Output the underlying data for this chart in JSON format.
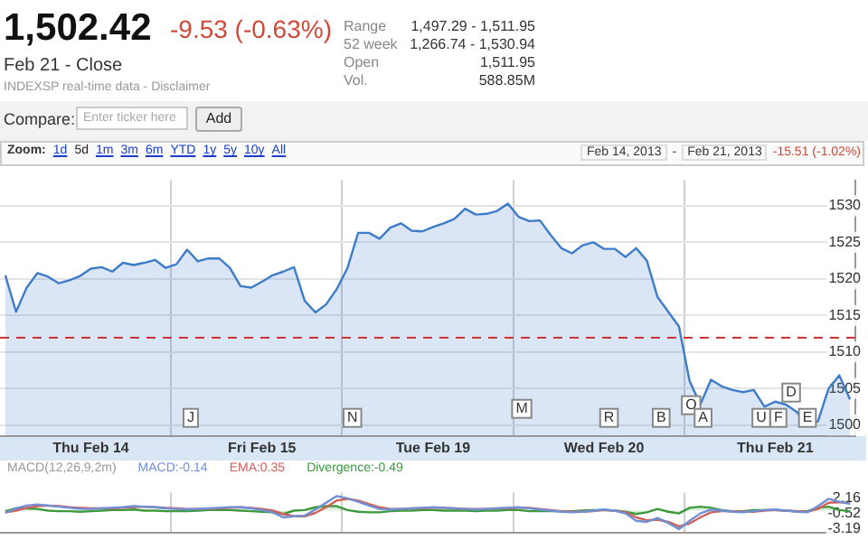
{
  "chart_data": [
    {
      "type": "other",
      "title": "1,502.42",
      "subtitle": "-9.53 (-0.63%)",
      "annotations": [
        "Feb 21 - Close",
        "INDEXSP real-time data - Disclaimer",
        "Range",
        "1,497.29 - 1,511.95",
        "52 week",
        "1,266.74 - 1,530.94",
        "Open",
        "1,511.95",
        "Vol.",
        "588.85M",
        "Compare:",
        "Enter ticker here",
        "Add",
        "Zoom:",
        "1d",
        "5d",
        "1m",
        "3m",
        "6m",
        "YTD",
        "1y",
        "5y",
        "10y",
        "All",
        "Feb 14, 2013",
        "-",
        "Feb 21, 2013",
        "-15.51 (-1.02%)"
      ]
    },
    {
      "type": "line",
      "ylim": [
        1498.5,
        1533.5
      ],
      "categories": [
        null,
        null,
        null,
        null,
        null,
        null,
        null,
        null,
        "Thu Feb 14",
        null,
        null,
        null,
        null,
        null,
        null,
        null,
        null,
        null,
        null,
        null,
        null,
        null,
        null,
        null,
        "Fri Feb 15",
        null,
        null,
        null,
        null,
        null,
        null,
        null,
        null,
        null,
        null,
        null,
        null,
        null,
        null,
        null,
        "Tue Feb 19",
        null,
        null,
        null,
        null,
        null,
        null,
        null,
        null,
        null,
        null,
        null,
        null,
        null,
        null,
        null,
        "Wed Feb 20",
        null,
        null,
        null,
        null,
        null,
        null,
        null,
        null,
        null,
        null,
        null,
        null,
        null,
        null,
        null,
        "Thu Feb 21",
        null,
        null,
        null,
        null,
        null,
        null,
        null
      ],
      "yticks": [
        1500,
        1505,
        1510,
        1515,
        1520,
        1525,
        1530
      ],
      "grid": true,
      "marker": "none",
      "line_style": "solid",
      "series": [
        {
          "type": "area",
          "color": "#3d7cc9",
          "values": [
            1520.5,
            1515.5,
            1518.8,
            1520.8,
            1520.3,
            1519.4,
            1519.8,
            1520.4,
            1521.4,
            1521.6,
            1521.0,
            1522.2,
            1521.9,
            1522.2,
            1522.6,
            1521.5,
            1522.0,
            1524.0,
            1522.4,
            1522.8,
            1522.8,
            1521.5,
            1519.0,
            1518.8,
            1519.6,
            1520.5,
            1521.0,
            1521.6,
            1517.0,
            1515.4,
            1516.5,
            1518.6,
            1521.5,
            1526.3,
            1526.3,
            1525.5,
            1527.0,
            1527.6,
            1526.6,
            1526.5,
            1527.1,
            1527.6,
            1528.2,
            1529.6,
            1528.8,
            1528.9,
            1529.3,
            1530.3,
            1528.5,
            1527.9,
            1528.0,
            1526.0,
            1524.2,
            1523.5,
            1524.6,
            1525.0,
            1524.1,
            1524.1,
            1523.0,
            1524.2,
            1522.5,
            1517.5,
            1515.5,
            1513.5,
            1506.0,
            1502.8,
            1506.2,
            1505.3,
            1504.8,
            1504.5,
            1504.8,
            1502.5,
            1503.2,
            1502.8,
            1501.8,
            1500.0,
            1500.5,
            1505.0,
            1506.8,
            1503.5
          ]
        }
      ],
      "ref_lines": [
        {
          "axis": "y",
          "value": 1511.95,
          "color": "#cc3333",
          "line_style": "dashed"
        }
      ],
      "annotations": [
        "J",
        "N",
        "M",
        "R",
        "B",
        "O",
        "A",
        "U",
        "F",
        "E",
        "D"
      ]
    },
    {
      "type": "line",
      "subtitle": "MACD(12,26,9,2m)",
      "ylim": [
        -4,
        3.2
      ],
      "categories": [
        null,
        null,
        null,
        null,
        null,
        null,
        null,
        null,
        null,
        null,
        null,
        null,
        null,
        null,
        null,
        null,
        null,
        null,
        null,
        null,
        null,
        null,
        null,
        null,
        null,
        null,
        null,
        null,
        null,
        null,
        null,
        null,
        null,
        null,
        null,
        null,
        null,
        null,
        null,
        null,
        null,
        null,
        null,
        null,
        null,
        null,
        null,
        null,
        null,
        null,
        null,
        null,
        null,
        null,
        null,
        null,
        null,
        null,
        null,
        null,
        null,
        null,
        null,
        null,
        null,
        null,
        null,
        null,
        null,
        null,
        null,
        null,
        null,
        null,
        null,
        null,
        null,
        null,
        null,
        null
      ],
      "yticks": [
        2.16,
        -0.52,
        -3.19
      ],
      "tick_labels": "y",
      "grid": "x",
      "marker": "none",
      "line_style": "solid",
      "series": [
        {
          "name": "MACD:-0.14",
          "type": "line",
          "color": "#6f8fd6",
          "values": [
            -0.4,
            0.4,
            0.9,
            1.1,
            0.9,
            0.7,
            0.5,
            0.3,
            0.3,
            0.4,
            0.5,
            0.6,
            0.8,
            0.7,
            0.6,
            0.4,
            0.3,
            0.2,
            0.3,
            0.4,
            0.5,
            0.6,
            0.6,
            0.4,
            0.1,
            -0.3,
            -1.2,
            -1.0,
            -0.9,
            0.2,
            1.4,
            2.6,
            2.2,
            1.6,
            0.9,
            0.3,
            0.2,
            0.3,
            0.4,
            0.5,
            0.6,
            0.5,
            0.4,
            0.3,
            0.2,
            0.3,
            0.4,
            0.5,
            0.6,
            0.4,
            0.2,
            0.0,
            -0.2,
            -0.3,
            -0.2,
            0.0,
            0.2,
            0.0,
            -0.5,
            -1.8,
            -2.0,
            -1.3,
            -2.2,
            -3.3,
            -1.8,
            -0.5,
            0.2,
            0.0,
            -0.2,
            -0.3,
            -0.1,
            0.1,
            0.2,
            0.0,
            -0.2,
            -0.3,
            0.8,
            2.1,
            1.6,
            1.2
          ]
        },
        {
          "name": "EMA:0.35",
          "type": "line",
          "color": "#d0605a",
          "values": [
            -0.3,
            0.0,
            0.5,
            0.8,
            0.9,
            0.8,
            0.6,
            0.5,
            0.4,
            0.4,
            0.4,
            0.5,
            0.6,
            0.7,
            0.6,
            0.5,
            0.4,
            0.3,
            0.3,
            0.3,
            0.4,
            0.5,
            0.6,
            0.5,
            0.3,
            0.0,
            -0.6,
            -1.0,
            -1.0,
            -0.4,
            0.6,
            1.8,
            2.1,
            1.8,
            1.2,
            0.6,
            0.3,
            0.3,
            0.4,
            0.4,
            0.5,
            0.5,
            0.4,
            0.3,
            0.3,
            0.3,
            0.4,
            0.4,
            0.5,
            0.5,
            0.3,
            0.1,
            -0.1,
            -0.2,
            -0.2,
            -0.1,
            0.1,
            0.0,
            -0.3,
            -1.2,
            -1.7,
            -1.6,
            -2.0,
            -2.8,
            -2.3,
            -1.2,
            -0.3,
            -0.1,
            -0.1,
            -0.2,
            -0.2,
            0.0,
            0.1,
            0.0,
            -0.1,
            -0.2,
            0.3,
            1.4,
            1.5,
            1.3
          ]
        },
        {
          "name": "Divergence:-0.49",
          "type": "area",
          "color": "#3c9a3c",
          "values": [
            -0.1,
            0.4,
            0.4,
            0.3,
            0.0,
            -0.1,
            -0.1,
            -0.2,
            -0.1,
            0.0,
            0.1,
            0.1,
            0.2,
            0.0,
            0.0,
            -0.1,
            -0.1,
            -0.1,
            0.0,
            0.1,
            0.1,
            0.1,
            0.0,
            -0.1,
            -0.2,
            -0.3,
            -0.6,
            0.0,
            0.1,
            0.6,
            0.8,
            0.8,
            0.1,
            -0.2,
            -0.3,
            -0.3,
            -0.1,
            0.0,
            0.0,
            0.1,
            0.1,
            0.0,
            0.0,
            0.0,
            -0.1,
            0.0,
            0.0,
            0.1,
            0.1,
            -0.1,
            -0.1,
            -0.1,
            -0.1,
            -0.1,
            0.0,
            0.1,
            0.1,
            0.0,
            -0.2,
            -0.6,
            -0.3,
            0.3,
            -0.2,
            -0.5,
            0.5,
            0.7,
            0.5,
            0.1,
            -0.1,
            -0.1,
            0.1,
            0.1,
            0.1,
            0.0,
            -0.1,
            -0.1,
            0.5,
            0.7,
            0.1,
            -0.1
          ]
        }
      ]
    }
  ]
}
